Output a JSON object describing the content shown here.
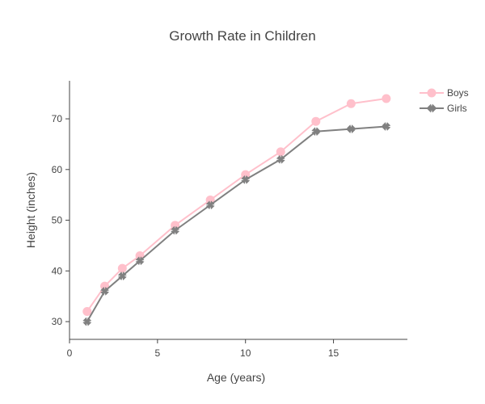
{
  "chart_data": {
    "type": "line",
    "title": "Growth Rate in Children",
    "xlabel": "Age (years)",
    "ylabel": "Height (inches)",
    "xlim": [
      0,
      19.2
    ],
    "ylim": [
      26.5,
      77.5
    ],
    "xticks": [
      0,
      5,
      10,
      15
    ],
    "yticks": [
      30,
      40,
      50,
      60,
      70
    ],
    "grid": false,
    "legend_position": "top-right",
    "series": [
      {
        "name": "Boys",
        "color": "#ffc0cb",
        "marker": "circle",
        "x": [
          1,
          2,
          3,
          4,
          6,
          8,
          10,
          12,
          14,
          16,
          18
        ],
        "y": [
          32,
          37,
          40.5,
          43,
          49,
          54,
          59,
          63.5,
          69.5,
          73,
          74
        ]
      },
      {
        "name": "Girls",
        "color": "#808080",
        "marker": "x",
        "x": [
          1,
          2,
          3,
          4,
          6,
          8,
          10,
          12,
          14,
          16,
          18
        ],
        "y": [
          30,
          36,
          39,
          42,
          48,
          53,
          58,
          62,
          67.5,
          68,
          68.5
        ]
      }
    ]
  }
}
